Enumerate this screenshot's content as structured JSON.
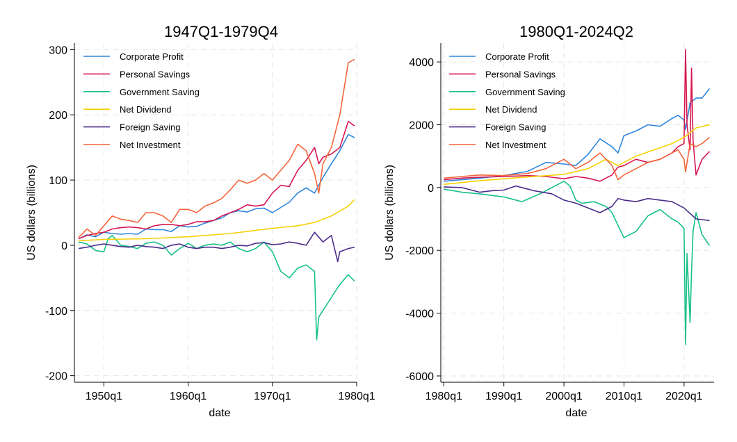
{
  "chart_data": [
    {
      "type": "line",
      "title": "1947Q1-1979Q4",
      "xlabel": "date",
      "ylabel": "US dollars (billions)",
      "xlim": [
        1946.5,
        1980.0
      ],
      "ylim": [
        -210,
        310
      ],
      "yticks": [
        -200,
        -100,
        0,
        100,
        200,
        300
      ],
      "xticks": [
        {
          "value": 1950,
          "label": "1950q1"
        },
        {
          "value": 1960,
          "label": "1960q1"
        },
        {
          "value": 1970,
          "label": "1970q1"
        },
        {
          "value": 1980,
          "label": "1980q1"
        }
      ],
      "grid": true,
      "legend_position": "top-left",
      "series": [
        {
          "name": "Corporate Profit",
          "color": "#2e86de",
          "x": [
            1947,
            1948,
            1949,
            1950,
            1951,
            1952,
            1953,
            1954,
            1955,
            1956,
            1957,
            1958,
            1959,
            1960,
            1961,
            1962,
            1963,
            1964,
            1965,
            1966,
            1967,
            1968,
            1969,
            1970,
            1971,
            1972,
            1973,
            1974,
            1975,
            1976,
            1977,
            1978,
            1979,
            1979.75
          ],
          "y": [
            10,
            16,
            13,
            20,
            18,
            17,
            18,
            17,
            25,
            24,
            24,
            21,
            30,
            28,
            29,
            34,
            38,
            42,
            50,
            53,
            51,
            56,
            57,
            50,
            58,
            66,
            80,
            88,
            80,
            104,
            125,
            145,
            170,
            165
          ]
        },
        {
          "name": "Personal Savings",
          "color": "#d6174f",
          "x": [
            1947,
            1948,
            1949,
            1950,
            1951,
            1952,
            1953,
            1954,
            1955,
            1956,
            1957,
            1958,
            1959,
            1960,
            1961,
            1962,
            1963,
            1964,
            1965,
            1966,
            1967,
            1968,
            1969,
            1970,
            1971,
            1972,
            1973,
            1974,
            1975,
            1975.5,
            1976,
            1977,
            1978,
            1979,
            1979.75
          ],
          "y": [
            10,
            15,
            18,
            20,
            25,
            27,
            28,
            27,
            25,
            30,
            32,
            32,
            30,
            32,
            36,
            36,
            38,
            45,
            50,
            55,
            62,
            60,
            62,
            80,
            92,
            90,
            115,
            130,
            150,
            125,
            135,
            140,
            150,
            190,
            183
          ]
        },
        {
          "name": "Government Saving",
          "color": "#16c08a",
          "x": [
            1947,
            1948,
            1949,
            1950,
            1950.5,
            1951,
            1952,
            1953,
            1954,
            1955,
            1956,
            1957,
            1958,
            1959,
            1960,
            1961,
            1962,
            1963,
            1964,
            1965,
            1966,
            1967,
            1968,
            1969,
            1970,
            1971,
            1972,
            1973,
            1974,
            1975,
            1975.25,
            1975.5,
            1976,
            1977,
            1978,
            1979,
            1979.75
          ],
          "y": [
            5,
            2,
            -8,
            -10,
            10,
            15,
            0,
            -2,
            -5,
            3,
            5,
            0,
            -15,
            -5,
            3,
            -5,
            0,
            2,
            0,
            5,
            -5,
            -10,
            -5,
            5,
            -10,
            -40,
            -50,
            -35,
            -30,
            -40,
            -145,
            -110,
            -100,
            -80,
            -60,
            -45,
            -55
          ]
        },
        {
          "name": "Net Dividend",
          "color": "#f7d000",
          "x": [
            1947,
            1950,
            1955,
            1960,
            1965,
            1970,
            1973,
            1975,
            1977,
            1979,
            1979.75
          ],
          "y": [
            7,
            9,
            10,
            13,
            18,
            26,
            30,
            35,
            45,
            60,
            70
          ]
        },
        {
          "name": "Foreign Saving",
          "color": "#4b2b8c",
          "x": [
            1947,
            1948,
            1949,
            1950,
            1951,
            1952,
            1953,
            1954,
            1955,
            1956,
            1957,
            1958,
            1959,
            1960,
            1961,
            1962,
            1963,
            1964,
            1965,
            1966,
            1967,
            1968,
            1969,
            1970,
            1971,
            1972,
            1973,
            1974,
            1975,
            1976,
            1977,
            1977.75,
            1978,
            1979,
            1979.75
          ],
          "y": [
            -5,
            -3,
            0,
            2,
            0,
            -2,
            -3,
            0,
            -2,
            -3,
            -5,
            0,
            2,
            -3,
            -5,
            -3,
            -3,
            -5,
            -3,
            0,
            -1,
            3,
            4,
            1,
            2,
            5,
            3,
            0,
            20,
            5,
            15,
            -25,
            -10,
            -5,
            -3
          ]
        },
        {
          "name": "Net Investment",
          "color": "#f4643a",
          "x": [
            1947,
            1948,
            1949,
            1950,
            1951,
            1952,
            1953,
            1954,
            1955,
            1956,
            1957,
            1958,
            1959,
            1960,
            1961,
            1962,
            1963,
            1964,
            1965,
            1966,
            1967,
            1968,
            1969,
            1970,
            1971,
            1972,
            1973,
            1974,
            1975,
            1975.5,
            1976,
            1977,
            1978,
            1979,
            1979.75
          ],
          "y": [
            12,
            25,
            15,
            30,
            45,
            40,
            38,
            35,
            50,
            50,
            45,
            35,
            55,
            55,
            50,
            60,
            65,
            72,
            85,
            100,
            95,
            100,
            110,
            100,
            115,
            130,
            155,
            145,
            110,
            80,
            125,
            150,
            200,
            280,
            285
          ]
        }
      ]
    },
    {
      "type": "line",
      "title": "1980Q1-2024Q2",
      "xlabel": "date",
      "ylabel": "US dollars (billions)",
      "xlim": [
        1979.5,
        2025.0
      ],
      "ylim": [
        -6200,
        4600
      ],
      "yticks": [
        -6000,
        -4000,
        -2000,
        0,
        2000,
        4000
      ],
      "xticks": [
        {
          "value": 1980,
          "label": "1980q1"
        },
        {
          "value": 1990,
          "label": "1990q1"
        },
        {
          "value": 2000,
          "label": "2000q1"
        },
        {
          "value": 2010,
          "label": "2010q1"
        },
        {
          "value": 2020,
          "label": "2020q1"
        }
      ],
      "grid": true,
      "legend_position": "top-left",
      "series": [
        {
          "name": "Corporate Profit",
          "color": "#2e86de",
          "x": [
            1980,
            1983,
            1986,
            1990,
            1994,
            1997,
            2000,
            2002,
            2004,
            2006,
            2008,
            2009,
            2010,
            2012,
            2014,
            2016,
            2018,
            2019,
            2020,
            2020.25,
            2021,
            2022,
            2023,
            2024.25
          ],
          "y": [
            200,
            250,
            300,
            380,
            520,
            800,
            750,
            700,
            1050,
            1550,
            1300,
            1100,
            1650,
            1800,
            2000,
            1950,
            2200,
            2300,
            2150,
            1850,
            2700,
            2850,
            2850,
            3150
          ]
        },
        {
          "name": "Personal Savings",
          "color": "#d6174f",
          "x": [
            1980,
            1983,
            1986,
            1990,
            1994,
            1997,
            2000,
            2002,
            2004,
            2006,
            2008,
            2009,
            2010,
            2012,
            2014,
            2016,
            2018,
            2019,
            2020,
            2020.25,
            2020.5,
            2021,
            2021.25,
            2021.5,
            2022,
            2023,
            2024.25
          ],
          "y": [
            250,
            300,
            330,
            350,
            380,
            350,
            280,
            350,
            300,
            200,
            400,
            650,
            700,
            900,
            800,
            900,
            1100,
            1300,
            1400,
            4400,
            2000,
            1200,
            3800,
            1500,
            400,
            900,
            1150
          ]
        },
        {
          "name": "Government Saving",
          "color": "#16c08a",
          "x": [
            1980,
            1983,
            1986,
            1990,
            1993,
            1996,
            1998,
            2000,
            2001,
            2002,
            2003,
            2005,
            2007,
            2008,
            2009,
            2010,
            2012,
            2014,
            2016,
            2018,
            2019,
            2020,
            2020.25,
            2020.5,
            2021,
            2021.25,
            2021.5,
            2022,
            2023,
            2024.25
          ],
          "y": [
            -50,
            -150,
            -200,
            -300,
            -450,
            -200,
            0,
            200,
            50,
            -400,
            -500,
            -450,
            -600,
            -800,
            -1200,
            -1600,
            -1400,
            -900,
            -700,
            -1000,
            -1100,
            -1300,
            -5000,
            -2100,
            -4300,
            -2700,
            -1400,
            -800,
            -1500,
            -1850
          ]
        },
        {
          "name": "Net Dividend",
          "color": "#f7d000",
          "x": [
            1980,
            1985,
            1990,
            1995,
            2000,
            2004,
            2007,
            2009,
            2012,
            2015,
            2018,
            2020,
            2022,
            2024.25
          ],
          "y": [
            100,
            200,
            280,
            350,
            420,
            600,
            900,
            700,
            1000,
            1200,
            1400,
            1600,
            1900,
            2000
          ]
        },
        {
          "name": "Foreign Saving",
          "color": "#4b2b8c",
          "x": [
            1980,
            1983,
            1986,
            1988,
            1990,
            1992,
            1995,
            1998,
            2000,
            2002,
            2004,
            2006,
            2008,
            2009,
            2010,
            2012,
            2014,
            2016,
            2018,
            2020,
            2022,
            2024.25
          ],
          "y": [
            20,
            0,
            -150,
            -100,
            -80,
            50,
            -100,
            -200,
            -400,
            -500,
            -650,
            -800,
            -600,
            -350,
            -400,
            -450,
            -350,
            -400,
            -450,
            -650,
            -1000,
            -1050
          ]
        },
        {
          "name": "Net Investment",
          "color": "#f4643a",
          "x": [
            1980,
            1983,
            1986,
            1990,
            1994,
            1997,
            2000,
            2002,
            2004,
            2006,
            2008,
            2009,
            2010,
            2012,
            2014,
            2016,
            2018,
            2019,
            2020,
            2020.25,
            2021,
            2022,
            2023,
            2024.25
          ],
          "y": [
            300,
            350,
            400,
            380,
            450,
            600,
            900,
            600,
            800,
            1100,
            700,
            250,
            400,
            600,
            800,
            900,
            1100,
            1200,
            900,
            500,
            1400,
            1300,
            1400,
            1600
          ]
        }
      ]
    }
  ]
}
